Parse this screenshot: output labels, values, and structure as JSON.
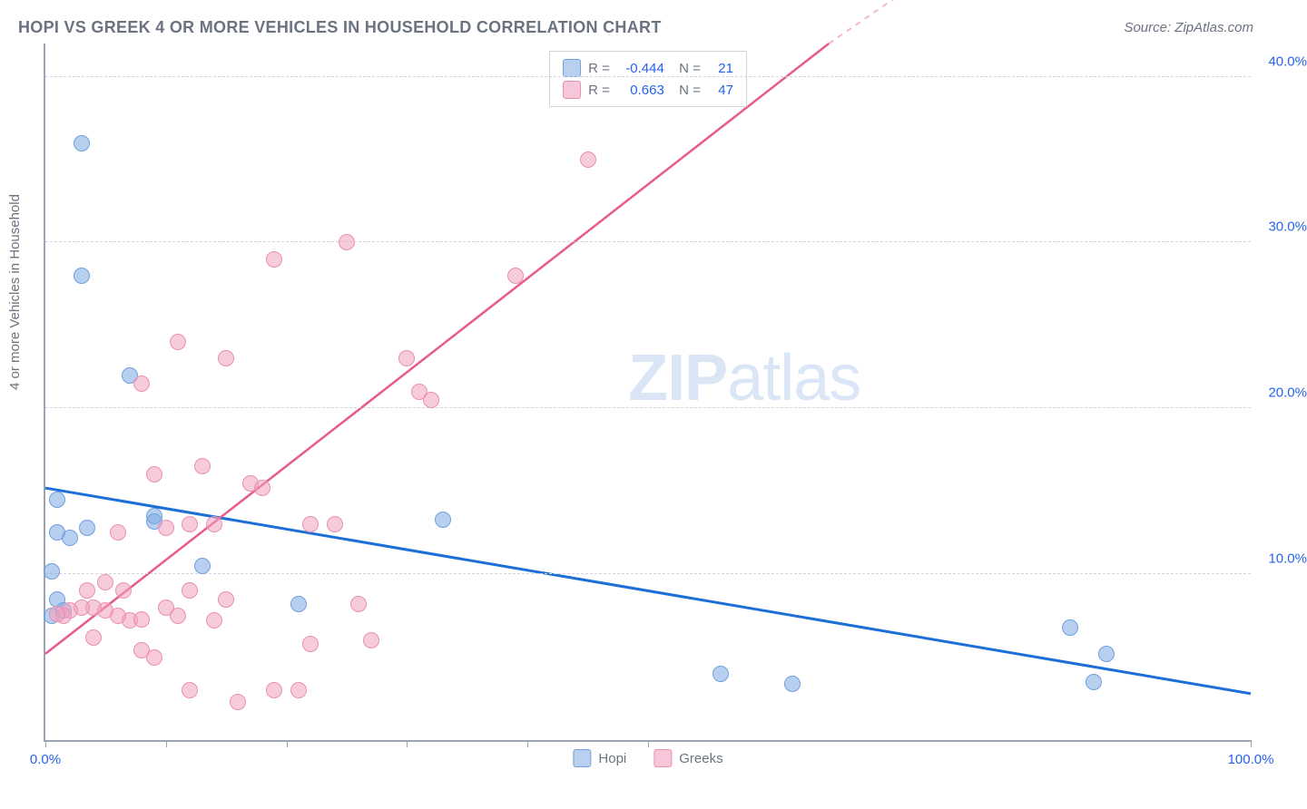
{
  "title": "HOPI VS GREEK 4 OR MORE VEHICLES IN HOUSEHOLD CORRELATION CHART",
  "source": "Source: ZipAtlas.com",
  "ylabel": "4 or more Vehicles in Household",
  "watermark_a": "ZIP",
  "watermark_b": "atlas",
  "chart": {
    "type": "scatter",
    "background_color": "#ffffff",
    "grid_color": "#d1d5db",
    "axis_color": "#9ca3af",
    "tick_color": "#2563eb",
    "xlim": [
      0,
      100
    ],
    "ylim": [
      0,
      42
    ],
    "xticks": [
      0,
      10,
      20,
      30,
      40,
      50,
      100
    ],
    "xtick_labels": {
      "0": "0.0%",
      "100": "100.0%"
    },
    "yticks": [
      10,
      20,
      30,
      40
    ],
    "ytick_labels": {
      "10": "10.0%",
      "20": "20.0%",
      "30": "30.0%",
      "40": "40.0%"
    },
    "series": [
      {
        "name": "Hopi",
        "color_fill": "rgba(125,169,227,0.55)",
        "color_stroke": "#6fa0dd",
        "swatch_fill": "#b9d0ef",
        "swatch_stroke": "#6fa0dd",
        "R": "-0.444",
        "N": "21",
        "trend": {
          "x1": 0,
          "y1": 15.2,
          "x2": 100,
          "y2": 2.8,
          "color": "#1d6fd8",
          "width": 3
        },
        "points": [
          [
            3,
            36
          ],
          [
            3,
            28
          ],
          [
            7,
            22
          ],
          [
            1,
            14.5
          ],
          [
            1,
            12.5
          ],
          [
            2,
            12.2
          ],
          [
            0.5,
            10.2
          ],
          [
            1,
            8.5
          ],
          [
            0.5,
            7.5
          ],
          [
            1.5,
            7.8
          ],
          [
            9,
            13.5
          ],
          [
            9,
            13.2
          ],
          [
            13,
            10.5
          ],
          [
            21,
            8.2
          ],
          [
            33,
            13.3
          ],
          [
            56,
            4.0
          ],
          [
            62,
            3.4
          ],
          [
            85,
            6.8
          ],
          [
            88,
            5.2
          ],
          [
            87,
            3.5
          ],
          [
            3.5,
            12.8
          ]
        ]
      },
      {
        "name": "Greeks",
        "color_fill": "rgba(242,160,190,0.55)",
        "color_stroke": "#e98fb3",
        "swatch_fill": "#f6c6d9",
        "swatch_stroke": "#e98fb3",
        "R": "0.663",
        "N": "47",
        "trend": {
          "x1": 0,
          "y1": 5.2,
          "x2": 65,
          "y2": 42,
          "color": "#e75a8e",
          "width": 2.5
        },
        "trend_dashed": {
          "x1": 65,
          "y1": 42,
          "x2": 73,
          "y2": 46,
          "color": "#f3b7cc",
          "width": 2
        },
        "points": [
          [
            45,
            35
          ],
          [
            25,
            30
          ],
          [
            19,
            29
          ],
          [
            39,
            28
          ],
          [
            11,
            24
          ],
          [
            15,
            23
          ],
          [
            8,
            21.5
          ],
          [
            30,
            23
          ],
          [
            31,
            21
          ],
          [
            32,
            20.5
          ],
          [
            9,
            16
          ],
          [
            13,
            16.5
          ],
          [
            17,
            15.5
          ],
          [
            18,
            15.2
          ],
          [
            12,
            13
          ],
          [
            14,
            13
          ],
          [
            10,
            12.8
          ],
          [
            22,
            13
          ],
          [
            24,
            13
          ],
          [
            26,
            8.2
          ],
          [
            27,
            6.0
          ],
          [
            19,
            3.0
          ],
          [
            21,
            3.0
          ],
          [
            12,
            3.0
          ],
          [
            16,
            2.3
          ],
          [
            8,
            5.4
          ],
          [
            7,
            7.2
          ],
          [
            6,
            7.5
          ],
          [
            5,
            7.8
          ],
          [
            4,
            8.0
          ],
          [
            3,
            8.0
          ],
          [
            2,
            7.8
          ],
          [
            1.5,
            7.5
          ],
          [
            1,
            7.6
          ],
          [
            3.5,
            9.0
          ],
          [
            5,
            9.5
          ],
          [
            6.5,
            9.0
          ],
          [
            10,
            8.0
          ],
          [
            11,
            7.5
          ],
          [
            8,
            7.3
          ],
          [
            15,
            8.5
          ],
          [
            14,
            7.2
          ],
          [
            4,
            6.2
          ],
          [
            9,
            5.0
          ],
          [
            12,
            9.0
          ],
          [
            6,
            12.5
          ],
          [
            22,
            5.8
          ]
        ]
      }
    ]
  },
  "legend_bottom": [
    {
      "label": "Hopi",
      "fill": "#b9d0ef",
      "stroke": "#6fa0dd"
    },
    {
      "label": "Greeks",
      "fill": "#f6c6d9",
      "stroke": "#e98fb3"
    }
  ]
}
